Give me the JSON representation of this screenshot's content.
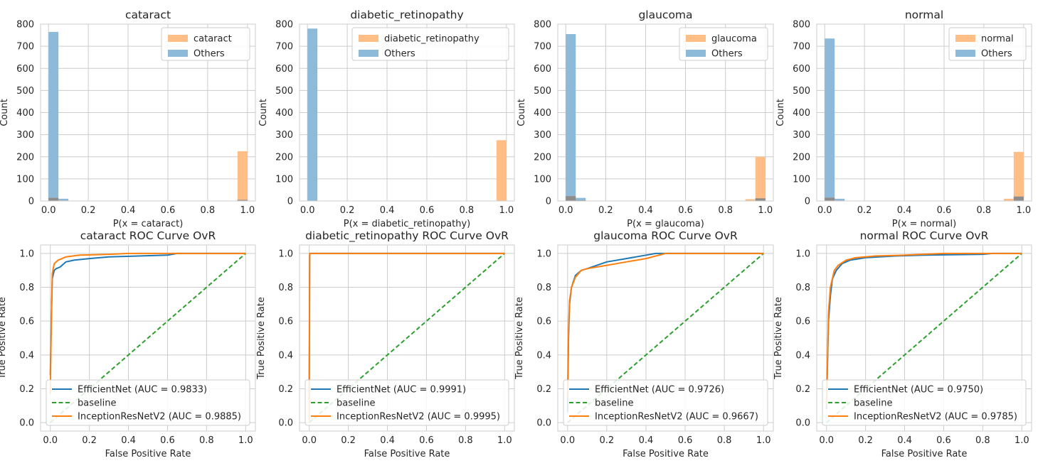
{
  "figure": {
    "background": "#ffffff"
  },
  "colors": {
    "class": "#ffbe86",
    "others": "#8ebad9",
    "overlap": "#8d8d8e",
    "efficientnet": "#1f77b4",
    "baseline": "#2ca02c",
    "inception": "#ff7f0e",
    "grid": "#cccccc",
    "frame": "#cccccc"
  },
  "chart_data": [
    {
      "type": "histogram",
      "title": "cataract",
      "xlabel": "P(x = cataract)",
      "ylabel": "Count",
      "xlim": [
        -0.04,
        1.04
      ],
      "ylim": [
        0,
        800
      ],
      "xticks": [
        "0.0",
        "0.2",
        "0.4",
        "0.6",
        "0.8",
        "1.0"
      ],
      "yticks": [
        "0",
        "100",
        "200",
        "300",
        "400",
        "500",
        "600",
        "700",
        "800"
      ],
      "legend": [
        "cataract",
        "Others"
      ],
      "legend_loc": "upper right",
      "bin_width": 0.05,
      "series": [
        {
          "name": "cataract",
          "bins": [
            [
              0.0,
              14
            ],
            [
              0.05,
              2
            ],
            [
              0.95,
              225
            ]
          ]
        },
        {
          "name": "Others",
          "bins": [
            [
              0.0,
              765
            ],
            [
              0.05,
              10
            ],
            [
              0.95,
              5
            ]
          ]
        }
      ]
    },
    {
      "type": "histogram",
      "title": "diabetic_retinopathy",
      "xlabel": "P(x = diabetic_retinopathy)",
      "ylabel": "Count",
      "xlim": [
        -0.04,
        1.04
      ],
      "ylim": [
        0,
        800
      ],
      "xticks": [
        "0.0",
        "0.2",
        "0.4",
        "0.6",
        "0.8",
        "1.0"
      ],
      "yticks": [
        "0",
        "100",
        "200",
        "300",
        "400",
        "500",
        "600",
        "700",
        "800"
      ],
      "legend": [
        "diabetic_retinopathy",
        "Others"
      ],
      "legend_loc": "upper right",
      "bin_width": 0.05,
      "series": [
        {
          "name": "diabetic_retinopathy",
          "bins": [
            [
              0.0,
              1
            ],
            [
              0.95,
              275
            ]
          ]
        },
        {
          "name": "Others",
          "bins": [
            [
              0.0,
              780
            ]
          ]
        }
      ]
    },
    {
      "type": "histogram",
      "title": "glaucoma",
      "xlabel": "P(x = glaucoma)",
      "ylabel": "Count",
      "xlim": [
        -0.04,
        1.04
      ],
      "ylim": [
        0,
        800
      ],
      "xticks": [
        "0.0",
        "0.2",
        "0.4",
        "0.6",
        "0.8",
        "1.0"
      ],
      "yticks": [
        "0",
        "100",
        "200",
        "300",
        "400",
        "500",
        "600",
        "700",
        "800"
      ],
      "legend": [
        "glaucoma",
        "Others"
      ],
      "legend_loc": "upper right",
      "bin_width": 0.05,
      "series": [
        {
          "name": "glaucoma",
          "bins": [
            [
              0.0,
              22
            ],
            [
              0.05,
              3
            ],
            [
              0.9,
              8
            ],
            [
              0.95,
              200
            ]
          ]
        },
        {
          "name": "Others",
          "bins": [
            [
              0.0,
              755
            ],
            [
              0.05,
              14
            ],
            [
              0.95,
              12
            ]
          ]
        }
      ]
    },
    {
      "type": "histogram",
      "title": "normal",
      "xlabel": "P(x = normal)",
      "ylabel": "Count",
      "xlim": [
        -0.04,
        1.04
      ],
      "ylim": [
        0,
        800
      ],
      "xticks": [
        "0.0",
        "0.2",
        "0.4",
        "0.6",
        "0.8",
        "1.0"
      ],
      "yticks": [
        "0",
        "100",
        "200",
        "300",
        "400",
        "500",
        "600",
        "700",
        "800"
      ],
      "legend": [
        "normal",
        "Others"
      ],
      "legend_loc": "upper right",
      "bin_width": 0.05,
      "series": [
        {
          "name": "normal",
          "bins": [
            [
              0.0,
              15
            ],
            [
              0.05,
              2
            ],
            [
              0.9,
              10
            ],
            [
              0.95,
              222
            ]
          ]
        },
        {
          "name": "Others",
          "bins": [
            [
              0.0,
              735
            ],
            [
              0.05,
              10
            ],
            [
              0.95,
              20
            ]
          ]
        }
      ]
    },
    {
      "type": "line",
      "title": "cataract ROC Curve OvR",
      "xlabel": "False Positive Rate",
      "ylabel": "True Positive Rate",
      "xlim": [
        -0.05,
        1.05
      ],
      "ylim": [
        -0.05,
        1.05
      ],
      "xticks": [
        "0.0",
        "0.2",
        "0.4",
        "0.6",
        "0.8",
        "1.0"
      ],
      "yticks": [
        "0.0",
        "0.2",
        "0.4",
        "0.6",
        "0.8",
        "1.0"
      ],
      "legend_loc": "lower right",
      "series": [
        {
          "name": "EfficientNet (AUC = 0.9833)",
          "style": "solid",
          "points": [
            [
              0,
              0.28
            ],
            [
              0.005,
              0.6
            ],
            [
              0.01,
              0.85
            ],
            [
              0.02,
              0.9
            ],
            [
              0.03,
              0.91
            ],
            [
              0.05,
              0.92
            ],
            [
              0.08,
              0.95
            ],
            [
              0.12,
              0.96
            ],
            [
              0.2,
              0.97
            ],
            [
              0.3,
              0.98
            ],
            [
              0.45,
              0.985
            ],
            [
              0.6,
              0.99
            ],
            [
              0.65,
              1.0
            ],
            [
              1.0,
              1.0
            ]
          ]
        },
        {
          "name": "baseline",
          "style": "dashed",
          "points": [
            [
              0,
              0
            ],
            [
              1,
              1
            ]
          ]
        },
        {
          "name": "InceptionResNetV2 (AUC = 0.9885)",
          "style": "solid",
          "points": [
            [
              0,
              0.17
            ],
            [
              0.005,
              0.6
            ],
            [
              0.01,
              0.88
            ],
            [
              0.02,
              0.94
            ],
            [
              0.04,
              0.96
            ],
            [
              0.08,
              0.98
            ],
            [
              0.15,
              0.99
            ],
            [
              0.3,
              0.995
            ],
            [
              0.4,
              1.0
            ],
            [
              1.0,
              1.0
            ]
          ]
        }
      ]
    },
    {
      "type": "line",
      "title": "diabetic_retinopathy ROC Curve OvR",
      "xlabel": "False Positive Rate",
      "ylabel": "True Positive Rate",
      "xlim": [
        -0.05,
        1.05
      ],
      "ylim": [
        -0.05,
        1.05
      ],
      "xticks": [
        "0.0",
        "0.2",
        "0.4",
        "0.6",
        "0.8",
        "1.0"
      ],
      "yticks": [
        "0.0",
        "0.2",
        "0.4",
        "0.6",
        "0.8",
        "1.0"
      ],
      "legend_loc": "lower right",
      "series": [
        {
          "name": "EfficientNet (AUC = 0.9991)",
          "style": "solid",
          "points": [
            [
              0,
              0.13
            ],
            [
              0,
              0.29
            ],
            [
              0.002,
              0.99
            ],
            [
              0.004,
              1.0
            ],
            [
              1.0,
              1.0
            ]
          ]
        },
        {
          "name": "baseline",
          "style": "dashed",
          "points": [
            [
              0,
              0
            ],
            [
              1,
              1
            ]
          ]
        },
        {
          "name": "InceptionResNetV2 (AUC = 0.9995)",
          "style": "solid",
          "points": [
            [
              0,
              0
            ],
            [
              0.002,
              1.0
            ],
            [
              1.0,
              1.0
            ]
          ]
        }
      ]
    },
    {
      "type": "line",
      "title": "glaucoma ROC Curve OvR",
      "xlabel": "False Positive Rate",
      "ylabel": "True Positive Rate",
      "xlim": [
        -0.05,
        1.05
      ],
      "ylim": [
        -0.05,
        1.05
      ],
      "xticks": [
        "0.0",
        "0.2",
        "0.4",
        "0.6",
        "0.8",
        "1.0"
      ],
      "yticks": [
        "0.0",
        "0.2",
        "0.4",
        "0.6",
        "0.8",
        "1.0"
      ],
      "legend_loc": "lower right",
      "series": [
        {
          "name": "EfficientNet (AUC = 0.9726)",
          "style": "solid",
          "points": [
            [
              0,
              0.06
            ],
            [
              0.005,
              0.5
            ],
            [
              0.01,
              0.7
            ],
            [
              0.02,
              0.8
            ],
            [
              0.04,
              0.87
            ],
            [
              0.07,
              0.9
            ],
            [
              0.1,
              0.91
            ],
            [
              0.15,
              0.93
            ],
            [
              0.2,
              0.95
            ],
            [
              0.3,
              0.97
            ],
            [
              0.4,
              0.99
            ],
            [
              0.45,
              1.0
            ],
            [
              1.0,
              1.0
            ]
          ]
        },
        {
          "name": "baseline",
          "style": "dashed",
          "points": [
            [
              0,
              0
            ],
            [
              1,
              1
            ]
          ]
        },
        {
          "name": "InceptionResNetV2 (AUC = 0.9667)",
          "style": "solid",
          "points": [
            [
              0,
              0.15
            ],
            [
              0.005,
              0.55
            ],
            [
              0.01,
              0.72
            ],
            [
              0.02,
              0.8
            ],
            [
              0.04,
              0.86
            ],
            [
              0.07,
              0.9
            ],
            [
              0.1,
              0.91
            ],
            [
              0.15,
              0.92
            ],
            [
              0.2,
              0.93
            ],
            [
              0.3,
              0.95
            ],
            [
              0.4,
              0.97
            ],
            [
              0.5,
              1.0
            ],
            [
              1.0,
              1.0
            ]
          ]
        }
      ]
    },
    {
      "type": "line",
      "title": "normal ROC Curve OvR",
      "xlabel": "False Positive Rate",
      "ylabel": "True Positive Rate",
      "xlim": [
        -0.05,
        1.05
      ],
      "ylim": [
        -0.05,
        1.05
      ],
      "xticks": [
        "0.0",
        "0.2",
        "0.4",
        "0.6",
        "0.8",
        "1.0"
      ],
      "yticks": [
        "0.0",
        "0.2",
        "0.4",
        "0.6",
        "0.8",
        "1.0"
      ],
      "legend_loc": "lower right",
      "series": [
        {
          "name": "EfficientNet (AUC = 0.9750)",
          "style": "solid",
          "points": [
            [
              0,
              0.08
            ],
            [
              0.01,
              0.6
            ],
            [
              0.02,
              0.75
            ],
            [
              0.03,
              0.85
            ],
            [
              0.05,
              0.9
            ],
            [
              0.08,
              0.94
            ],
            [
              0.12,
              0.96
            ],
            [
              0.2,
              0.975
            ],
            [
              0.35,
              0.985
            ],
            [
              0.5,
              0.99
            ],
            [
              0.8,
              0.995
            ],
            [
              0.85,
              1.0
            ],
            [
              1.0,
              1.0
            ]
          ]
        },
        {
          "name": "baseline",
          "style": "dashed",
          "points": [
            [
              0,
              0
            ],
            [
              1,
              1
            ]
          ]
        },
        {
          "name": "InceptionResNetV2 (AUC = 0.9785)",
          "style": "solid",
          "points": [
            [
              0,
              0.1
            ],
            [
              0.01,
              0.65
            ],
            [
              0.02,
              0.8
            ],
            [
              0.04,
              0.9
            ],
            [
              0.06,
              0.93
            ],
            [
              0.1,
              0.96
            ],
            [
              0.15,
              0.975
            ],
            [
              0.25,
              0.985
            ],
            [
              0.4,
              0.99
            ],
            [
              0.6,
              1.0
            ],
            [
              1.0,
              1.0
            ]
          ]
        }
      ]
    }
  ]
}
